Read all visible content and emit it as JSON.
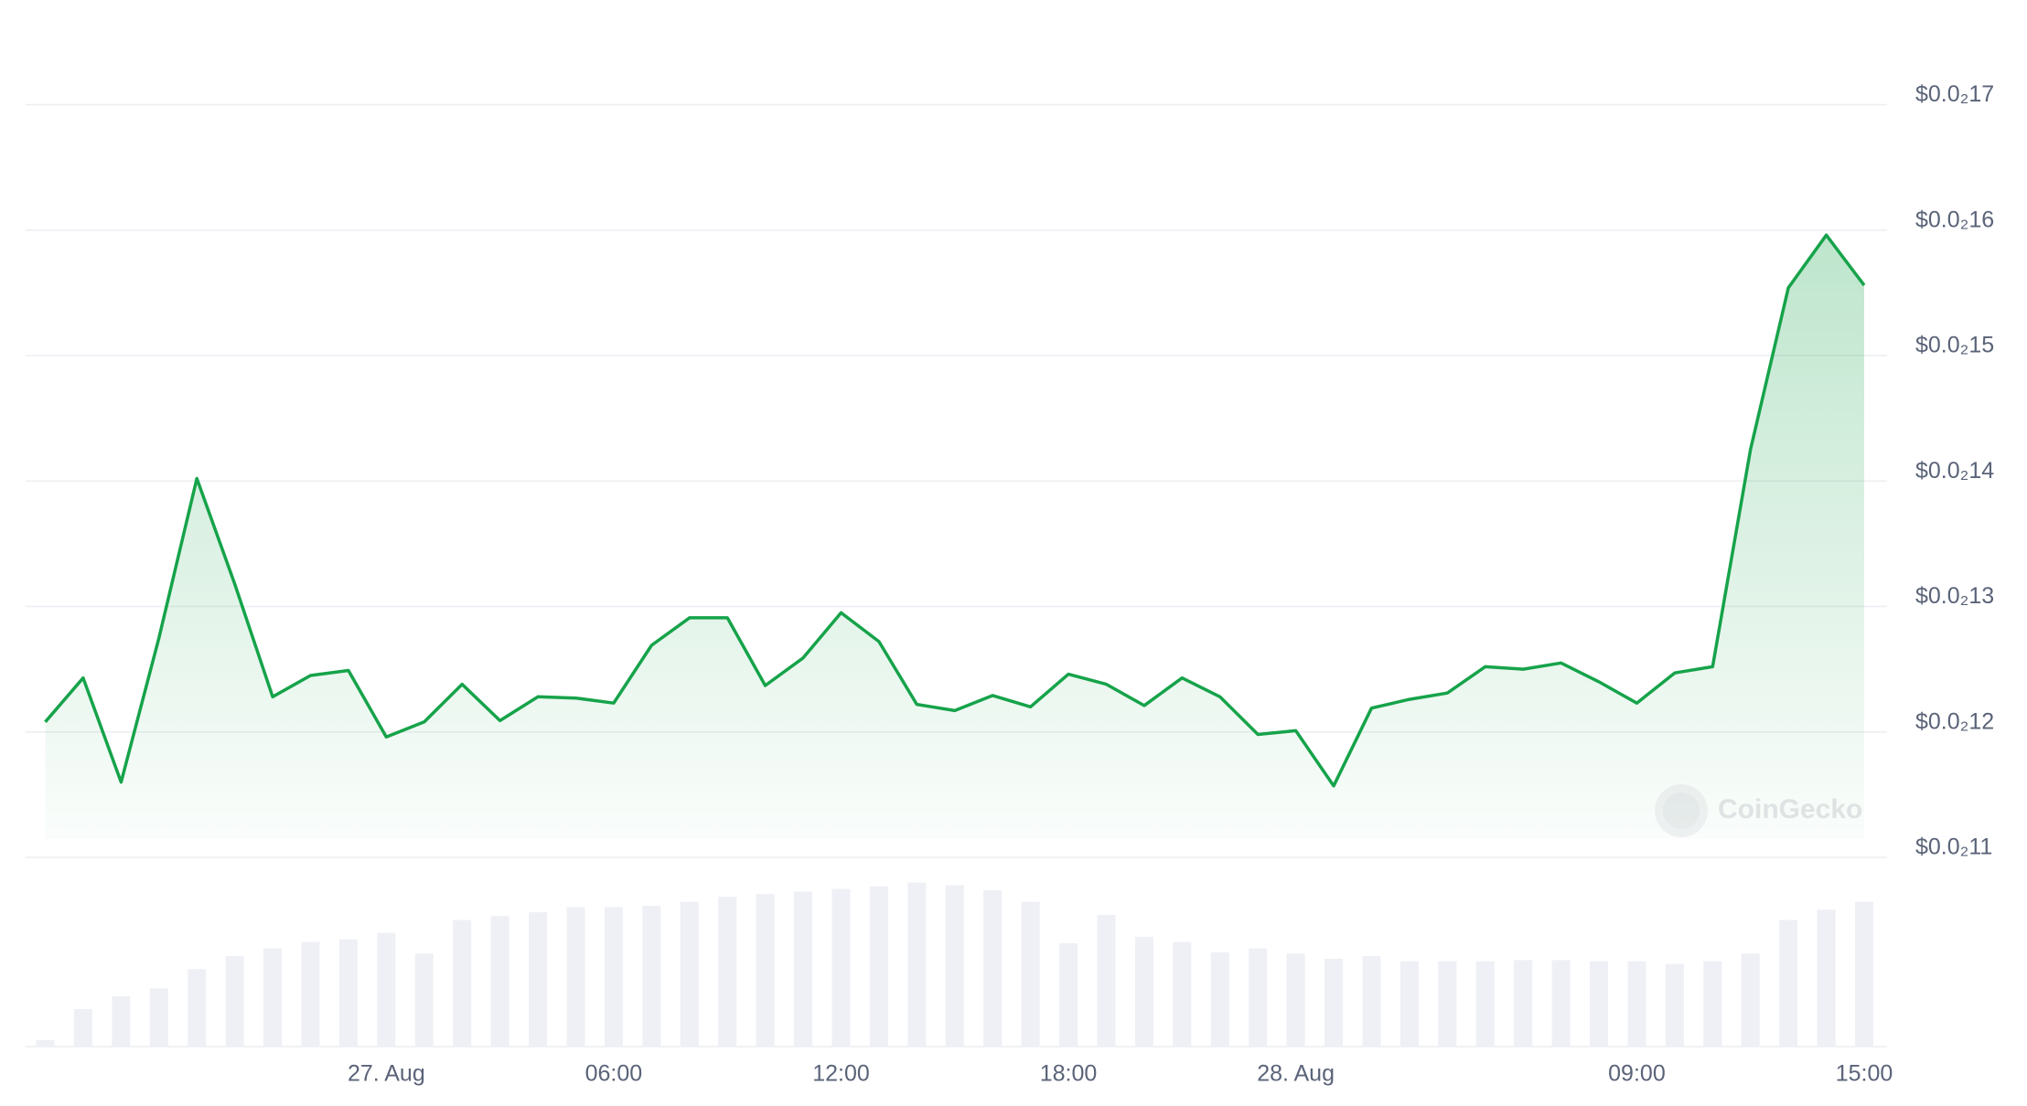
{
  "chart_data": {
    "type": "line",
    "categories": [
      null,
      null,
      null,
      null,
      null,
      null,
      null,
      null,
      null,
      "27. Aug",
      null,
      null,
      null,
      null,
      null,
      "06:00",
      null,
      null,
      null,
      null,
      null,
      "12:00",
      null,
      null,
      null,
      null,
      null,
      "18:00",
      null,
      null,
      null,
      null,
      null,
      "28. Aug",
      null,
      null,
      null,
      null,
      null,
      null,
      null,
      null,
      "09:00",
      null,
      null,
      null,
      null,
      null,
      "15:00"
    ],
    "series": [
      {
        "color": "#16a34a",
        "values": [
          0.001208,
          0.001243,
          0.00116,
          0.001275,
          0.001402,
          0.001318,
          0.001228,
          0.001245,
          0.001249,
          0.001196,
          0.001208,
          0.001238,
          0.001209,
          0.001228,
          0.001227,
          0.001223,
          0.001269,
          0.001291,
          0.001291,
          0.001237,
          0.001259,
          0.001295,
          0.001272,
          0.001222,
          0.001217,
          0.001229,
          0.00122,
          0.001246,
          0.001238,
          0.001221,
          0.001243,
          0.001228,
          0.001198,
          0.001201,
          0.001157,
          0.001219,
          0.001226,
          0.001231,
          0.001252,
          0.00125,
          0.001255,
          0.00124,
          0.001223,
          0.001247,
          0.001252,
          0.001425,
          0.001554,
          0.001596,
          0.001556
        ]
      }
    ],
    "volume": {
      "color": "#eef0f5",
      "values": [
        5,
        29,
        39,
        45,
        60,
        70,
        76,
        81,
        83,
        88,
        72,
        98,
        101,
        104,
        108,
        108,
        109,
        112,
        116,
        118,
        120,
        122,
        124,
        127,
        125,
        121,
        112,
        80,
        102,
        85,
        81,
        73,
        76,
        72,
        68,
        70,
        66,
        66,
        66,
        67,
        67,
        66,
        66,
        64,
        66,
        72,
        98,
        106,
        112
      ]
    },
    "ylim": [
      0.0011,
      0.0017
    ],
    "yticks": [
      {
        "value": 0.0011,
        "label": "$0.0₂11"
      },
      {
        "value": 0.0012,
        "label": "$0.0₂12"
      },
      {
        "value": 0.0013,
        "label": "$0.0₂13"
      },
      {
        "value": 0.0014,
        "label": "$0.0₂14"
      },
      {
        "value": 0.0015,
        "label": "$0.0₂15"
      },
      {
        "value": 0.0016,
        "label": "$0.0₂16"
      },
      {
        "value": 0.0017,
        "label": "$0.0₂17"
      }
    ],
    "grid": true,
    "watermark": "CoinGecko"
  }
}
